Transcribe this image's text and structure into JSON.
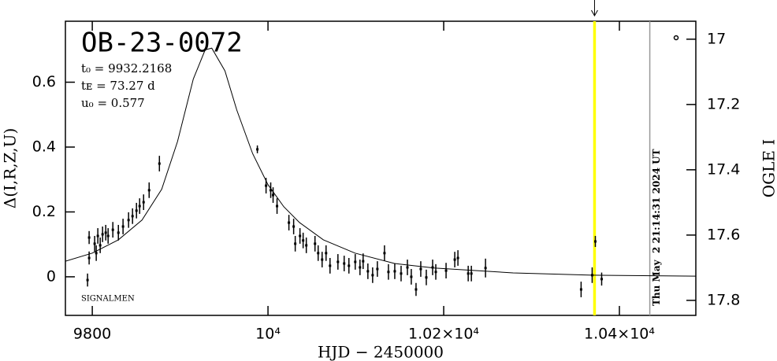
{
  "chart_data": {
    "type": "scatter",
    "title": "OB-23-0072",
    "annotations": [
      "t₀ = 9932.2168",
      "tᴇ = 73.27 d",
      "u₀ = 0.577"
    ],
    "footnote": "SIGNALMEN",
    "x_label": "HJD − 2450000",
    "y_label": "Δ(I,R,Z,U)",
    "y2_label": "OGLE I",
    "xlim": [
      9769.4,
      10487
    ],
    "xticks": [
      9800,
      {
        "value": 10000,
        "label": "10⁴"
      },
      {
        "value": 10200,
        "label": "1.02×10⁴"
      },
      {
        "value": 10400,
        "label": "1.04×10⁴"
      }
    ],
    "ylim": [
      -0.119,
      0.788
    ],
    "yticks": [
      0,
      0.2,
      0.4,
      0.6
    ],
    "y2lim": [
      17.846,
      16.945
    ],
    "y2ticks": [
      17,
      17.2,
      17.4,
      17.6,
      17.8
    ],
    "series": [
      {
        "color": "#000000",
        "x": [
          9794.6,
          9796.4,
          9796.4,
          9802.7,
          9804.5,
          9806.3,
          9809,
          9811.7,
          9815.3,
          9818,
          9823.4,
          9829.7,
          9835,
          9841.3,
          9845.8,
          9850.3,
          9853.9,
          9858.4,
          9864.7,
          9876.4,
          9987.9,
          9997.8,
          10003.1,
          10005.8,
          10010.3,
          10023.8,
          10029.2,
          10031,
          10036.4,
          10040,
          10043.6,
          10053.5,
          10057.1,
          10061.6,
          10066.1,
          10070.6,
          10079.6,
          10086.7,
          10092.1,
          10099.3,
          10104.7,
          10108.3,
          10113.7,
          10119.1,
          10124.5,
          10132.6,
          10137.1,
          10144.3,
          10151.5,
          10158.7,
          10163.1,
          10168.5,
          10173.9,
          10180.2,
          10187.4,
          10191,
          10202.7,
          10212.6,
          10216.2,
          10227.9,
          10231.5,
          10247.6,
          10356.4,
          10369,
          10372.6,
          10379.8
        ],
        "values": [
          -0.01,
          0.058,
          0.121,
          0.102,
          0.073,
          0.126,
          0.097,
          0.131,
          0.136,
          0.126,
          0.145,
          0.136,
          0.155,
          0.175,
          0.187,
          0.204,
          0.218,
          0.23,
          0.267,
          0.349,
          0.393,
          0.281,
          0.267,
          0.252,
          0.218,
          0.167,
          0.155,
          0.102,
          0.126,
          0.112,
          0.097,
          0.102,
          0.073,
          0.053,
          0.073,
          0.034,
          0.046,
          0.041,
          0.034,
          0.046,
          0.029,
          0.048,
          0.017,
          0.005,
          0.024,
          0.073,
          0.015,
          0.017,
          0.01,
          0.029,
          0,
          -0.039,
          0.024,
          -0.002,
          0.029,
          0.015,
          0.019,
          0.053,
          0.058,
          0.01,
          0.01,
          0.027,
          -0.039,
          0.005,
          0.109,
          -0.007
        ],
        "errors": [
          0.02,
          0.02,
          0.02,
          0.024,
          0.024,
          0.024,
          0.024,
          0.024,
          0.024,
          0.024,
          0.024,
          0.024,
          0.024,
          0.024,
          0.024,
          0.024,
          0.024,
          0.024,
          0.024,
          0.024,
          0.012,
          0.024,
          0.024,
          0.024,
          0.024,
          0.024,
          0.024,
          0.024,
          0.024,
          0.024,
          0.024,
          0.024,
          0.024,
          0.024,
          0.024,
          0.024,
          0.024,
          0.024,
          0.024,
          0.024,
          0.024,
          0.024,
          0.024,
          0.024,
          0.024,
          0.024,
          0.024,
          0.024,
          0.024,
          0.024,
          0.024,
          0.02,
          0.024,
          0.024,
          0.024,
          0.024,
          0.024,
          0.024,
          0.024,
          0.024,
          0.024,
          0.029,
          0.024,
          0.024,
          0.017,
          0.02
        ]
      }
    ],
    "model": {
      "color": "#000000",
      "x": [
        9769.4,
        9800,
        9829.7,
        9856.6,
        9879,
        9897,
        9915,
        9928.5,
        9936,
        9951,
        9964.5,
        9982.5,
        10000,
        10018,
        10036,
        10063,
        10099,
        10144,
        10189,
        10279,
        10369,
        10487
      ],
      "values": [
        0.048,
        0.073,
        0.114,
        0.175,
        0.27,
        0.417,
        0.61,
        0.7,
        0.705,
        0.635,
        0.514,
        0.38,
        0.284,
        0.216,
        0.167,
        0.114,
        0.073,
        0.041,
        0.027,
        0.012,
        0.005,
        0.002
      ]
    },
    "markers": [
      {
        "x": 10371.7,
        "color": "#ffff00"
      },
      {
        "x": 10434.6,
        "color": "#999999",
        "label": "Thu May  2 21:14:31 2024 UT"
      }
    ]
  }
}
